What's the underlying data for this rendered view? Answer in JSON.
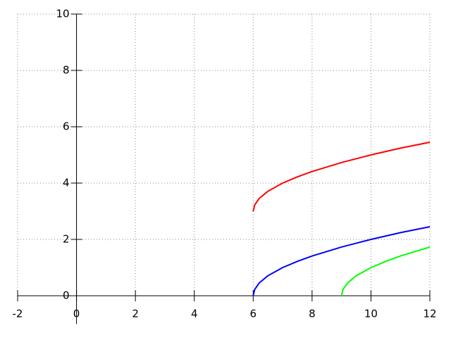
{
  "chart_data": {
    "type": "line",
    "xlim": [
      -2,
      12
    ],
    "ylim": [
      0,
      10
    ],
    "xticks": [
      -2,
      0,
      2,
      4,
      6,
      8,
      10,
      12
    ],
    "yticks": [
      0,
      2,
      4,
      6,
      8,
      10
    ],
    "grid": true,
    "series": [
      {
        "color": "#ff0000",
        "x": [
          6,
          6.05,
          6.2,
          6.5,
          7,
          7.5,
          8,
          9,
          10,
          11,
          12
        ],
        "values": [
          3,
          3.22,
          3.45,
          3.71,
          4,
          4.22,
          4.41,
          4.73,
          5,
          5.24,
          5.45
        ]
      },
      {
        "color": "#0000ff",
        "x": [
          6,
          6.05,
          6.2,
          6.5,
          7,
          7.5,
          8,
          9,
          10,
          11,
          12
        ],
        "values": [
          0,
          0.22,
          0.45,
          0.71,
          1,
          1.22,
          1.41,
          1.73,
          2,
          2.24,
          2.45
        ]
      },
      {
        "color": "#00ff00",
        "x": [
          9,
          9.05,
          9.2,
          9.5,
          10,
          10.5,
          11,
          12
        ],
        "values": [
          0,
          0.22,
          0.45,
          0.71,
          1,
          1.22,
          1.41,
          1.73
        ]
      }
    ]
  }
}
